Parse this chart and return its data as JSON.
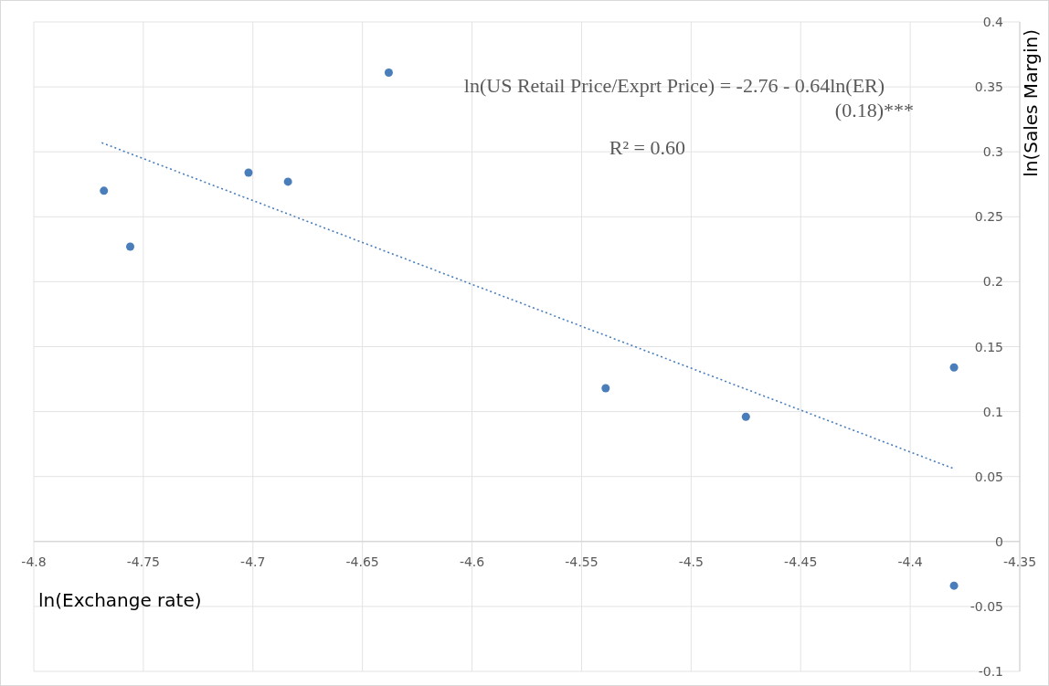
{
  "chart_data": {
    "type": "scatter",
    "xlabel": "ln(Exchange rate)",
    "ylabel": "ln(Sales Margin)",
    "annotations": [
      "ln(US Retail Price/Exprt Price) = -2.76 - 0.64ln(ER)",
      "(0.18)***",
      "R² = 0.60"
    ],
    "series": [
      {
        "color": "#4a7ebb",
        "marker": "circle",
        "x": [
          -4.768,
          -4.756,
          -4.702,
          -4.684,
          -4.638,
          -4.539,
          -4.475,
          -4.38,
          -4.38
        ],
        "values": [
          0.27,
          0.227,
          0.284,
          0.277,
          0.361,
          0.118,
          0.096,
          0.134,
          -0.034
        ]
      },
      {
        "type": "line",
        "color": "#4a7ebb",
        "line_style": "dotted",
        "marker": "none",
        "x": [
          -4.769,
          -4.38
        ],
        "values": [
          0.307,
          0.056
        ]
      }
    ],
    "xlim": [
      -4.8,
      -4.35
    ],
    "xticks": [
      -4.8,
      -4.75,
      -4.7,
      -4.65,
      -4.6,
      -4.55,
      -4.5,
      -4.45,
      -4.4,
      -4.35
    ],
    "ylim": [
      -0.1,
      0.4
    ],
    "yticks": [
      -0.1,
      -0.05,
      0,
      0.05,
      0.1,
      0.15,
      0.2,
      0.25,
      0.3,
      0.35,
      0.4
    ],
    "grid": true
  }
}
